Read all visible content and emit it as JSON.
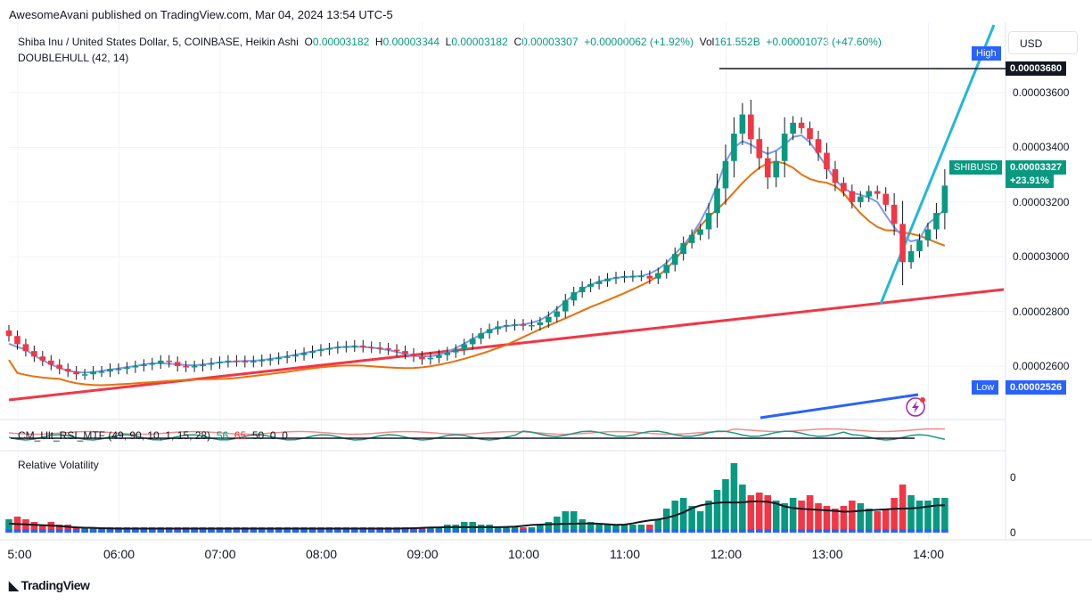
{
  "header": {
    "published": "AwesomeAvani published on TradingView.com, Mar 04, 2024 13:54 UTC-5"
  },
  "symbol_line": {
    "title": "Shiba Inu / United States Dollar, 5, COINBASE, Heikin Ashi",
    "o_label": "O",
    "o_value": "0.00003182",
    "h_label": "H",
    "h_value": "0.00003344",
    "l_label": "L",
    "l_value": "0.00003182",
    "c_label": "C",
    "c_value": "0.00003307",
    "change": "+0.00000062 (+1.92%)",
    "vol_label": "Vol",
    "vol_value": "161.552B",
    "vol_change": "+0.00001073 (+47.60%)"
  },
  "indicator_line": "DOUBLEHULL (42, 14)",
  "rsi_pane": {
    "label": "CM_Ult_RSI_MTF (49, 90, 10, 1, 15, 28)",
    "v1": "56",
    "v2": "65",
    "v3": "50",
    "v4": "0",
    "v5": "0"
  },
  "volatility_pane": {
    "label": "Relative Volatility",
    "tick_top": "0",
    "tick_bottom": "0"
  },
  "currency_button": "USD",
  "price_badges": {
    "high_label": "High",
    "high_value": "0.00003680",
    "symbol": "SHIBUSD",
    "last_value": "0.00003327",
    "last_change": "+23.91%",
    "low_label": "Low",
    "low_value": "0.00002526"
  },
  "footer": {
    "brand": "TradingView"
  },
  "colors": {
    "up": "#089981",
    "down": "#f23645",
    "hull_fast": "#7b9ae8",
    "hull_slow": "#e8700d",
    "trend_support": "#f23645",
    "trend_steep": "#22b8d8",
    "blue_line": "#2962ff"
  },
  "chart_data": {
    "type": "candlestick",
    "ylim": [
      2.5e-05,
      3.8e-05
    ],
    "y_ticks": [
      "0.00003600",
      "0.00003400",
      "0.00003200",
      "0.00003000",
      "0.00002800",
      "0.00002600"
    ],
    "y_tick_values": [
      3.6e-05,
      3.4e-05,
      3.2e-05,
      3e-05,
      2.8e-05,
      2.6e-05
    ],
    "x_ticks": [
      "5:00",
      "06:00",
      "07:00",
      "08:00",
      "09:00",
      "10:00",
      "11:00",
      "12:00",
      "13:00",
      "14:00"
    ],
    "x_tick_hours": [
      5,
      6,
      7,
      8,
      9,
      10,
      11,
      12,
      13,
      14
    ],
    "x_range_hours": [
      5.0,
      14.6
    ],
    "candles_start_hour": 5.0,
    "candle_interval_min": 5,
    "closes": [
      2.71e-05,
      2.68e-05,
      2.655e-05,
      2.635e-05,
      2.62e-05,
      2.605e-05,
      2.59e-05,
      2.58e-05,
      2.57e-05,
      2.57e-05,
      2.58e-05,
      2.58e-05,
      2.59e-05,
      2.59e-05,
      2.595e-05,
      2.6e-05,
      2.605e-05,
      2.61e-05,
      2.62e-05,
      2.615e-05,
      2.6e-05,
      2.598e-05,
      2.6e-05,
      2.605e-05,
      2.61e-05,
      2.615e-05,
      2.62e-05,
      2.618e-05,
      2.615e-05,
      2.618e-05,
      2.622e-05,
      2.625e-05,
      2.63e-05,
      2.635e-05,
      2.64e-05,
      2.648e-05,
      2.655e-05,
      2.66e-05,
      2.665e-05,
      2.67e-05,
      2.672e-05,
      2.675e-05,
      2.67e-05,
      2.668e-05,
      2.665e-05,
      2.66e-05,
      2.655e-05,
      2.645e-05,
      2.635e-05,
      2.625e-05,
      2.63e-05,
      2.64e-05,
      2.65e-05,
      2.66e-05,
      2.68e-05,
      2.7e-05,
      2.72e-05,
      2.735e-05,
      2.745e-05,
      2.75e-05,
      2.752e-05,
      2.75e-05,
      2.75e-05,
      2.76e-05,
      2.78e-05,
      2.8e-05,
      2.84e-05,
      2.87e-05,
      2.89e-05,
      2.9e-05,
      2.91e-05,
      2.92e-05,
      2.925e-05,
      2.928e-05,
      2.93e-05,
      2.93e-05,
      2.92e-05,
      2.94e-05,
      2.97e-05,
      3.01e-05,
      3.05e-05,
      3.08e-05,
      3.1e-05,
      3.16e-05,
      3.25e-05,
      3.35e-05,
      3.45e-05,
      3.52e-05,
      3.43e-05,
      3.36e-05,
      3.29e-05,
      3.35e-05,
      3.45e-05,
      3.49e-05,
      3.47e-05,
      3.43e-05,
      3.38e-05,
      3.32e-05,
      3.27e-05,
      3.24e-05,
      3.2e-05,
      3.22e-05,
      3.24e-05,
      3.23e-05,
      3.19e-05,
      3.12e-05,
      2.98e-05,
      3.02e-05,
      3.06e-05,
      3.1e-05,
      3.16e-05,
      3.26e-05
    ],
    "volatility": [
      5,
      6,
      5,
      4,
      3,
      4,
      3,
      3,
      2,
      2,
      2,
      2,
      2,
      2,
      2,
      2,
      2,
      2,
      2,
      2,
      2,
      2,
      2,
      2,
      2,
      2,
      2,
      2,
      2,
      2,
      2,
      2,
      2,
      2,
      2,
      2,
      2,
      2,
      2,
      2,
      2,
      2,
      2,
      2,
      2,
      2,
      2,
      2,
      2,
      2,
      2,
      2,
      3,
      3,
      4,
      4,
      3,
      3,
      2,
      2,
      2,
      2,
      2,
      3,
      4,
      6,
      8,
      8,
      5,
      4,
      3,
      3,
      3,
      3,
      3,
      3,
      3,
      5,
      9,
      12,
      13,
      10,
      8,
      12,
      16,
      20,
      26,
      18,
      14,
      15,
      14,
      12,
      11,
      13,
      12,
      14,
      11,
      10,
      9,
      10,
      12,
      11,
      9,
      8,
      9,
      13,
      18,
      14,
      12,
      12,
      13,
      13
    ],
    "high_price": 3.68e-05,
    "low_price": 2.526e-05,
    "last_price": 3.327e-05
  }
}
